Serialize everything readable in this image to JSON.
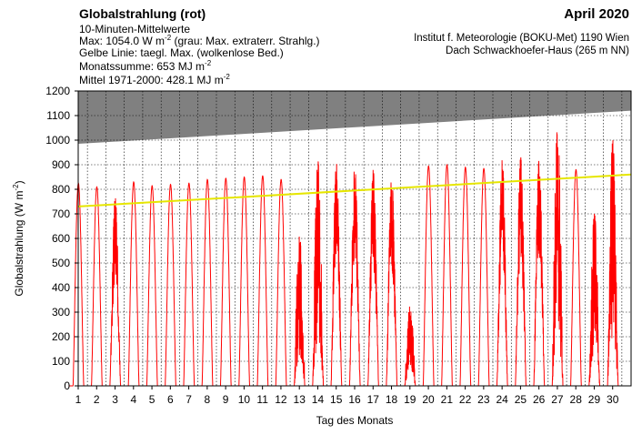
{
  "header": {
    "title": "Globalstrahlung (rot)",
    "subtitle": "10-Minuten-Mittelwerte",
    "max_prefix": "Max: 1054.0 W m",
    "max_exp": "-2",
    "max_note": " (grau: Max. extraterr. Strahlg.)",
    "yellow_line": "Gelbe Linie: taegl. Max. (wolkenlose Bed.)",
    "monthly_sum_prefix": "Monatssumme:  653 MJ m",
    "monthly_sum_exp": "-2",
    "mean_prefix": "Mittel 1971-2000:  428.1 MJ m",
    "mean_exp": "-2",
    "month": "April 2020",
    "institute_line1": "Institut f. Meteorologie (BOKU-Met) 1190 Wien",
    "institute_line2": "Dach Schwackhoefer-Haus (265 m NN)"
  },
  "colors": {
    "series": "#ff0000",
    "clear_sky": "#e6e600",
    "extraterrestrial": "#808080",
    "grid": "#000000"
  },
  "chart_data": {
    "type": "line",
    "xlabel": "Tag des Monats",
    "ylabel_prefix": "Globalstrahlung (W m",
    "ylabel_exp": "-2",
    "ylabel_suffix": ")",
    "xlim": [
      1,
      31
    ],
    "ylim": [
      0,
      1200
    ],
    "yticks": [
      0,
      100,
      200,
      300,
      400,
      500,
      600,
      700,
      800,
      900,
      1000,
      1100,
      1200
    ],
    "xticks": [
      1,
      2,
      3,
      4,
      5,
      6,
      7,
      8,
      9,
      10,
      11,
      12,
      13,
      14,
      15,
      16,
      17,
      18,
      19,
      20,
      21,
      22,
      23,
      24,
      25,
      26,
      27,
      28,
      29,
      30
    ],
    "grid": true,
    "extraterrestrial_max": {
      "x": [
        1,
        31
      ],
      "y": [
        985,
        1120
      ]
    },
    "clear_sky_max": {
      "x": [
        1,
        31
      ],
      "y": [
        730,
        860
      ]
    },
    "series": [
      {
        "day_peaks": [
          825,
          810,
          765,
          830,
          815,
          820,
          825,
          840,
          845,
          850,
          855,
          840,
          610,
          915,
          905,
          895,
          880,
          850,
          330,
          895,
          900,
          890,
          885,
          920,
          930,
          920,
          1054,
          880,
          700,
          1000
        ],
        "day_types": [
          "clear",
          "clear",
          "partly",
          "clear",
          "clear",
          "clear",
          "clear",
          "clear",
          "clear",
          "clear",
          "clear",
          "clear",
          "cloudy",
          "cloudy",
          "partly",
          "partly",
          "partly",
          "partly",
          "cloudy",
          "clear",
          "clear",
          "clear",
          "clear",
          "partly",
          "partly",
          "partly",
          "cloudy",
          "clear",
          "cloudy",
          "cloudy"
        ]
      }
    ]
  }
}
